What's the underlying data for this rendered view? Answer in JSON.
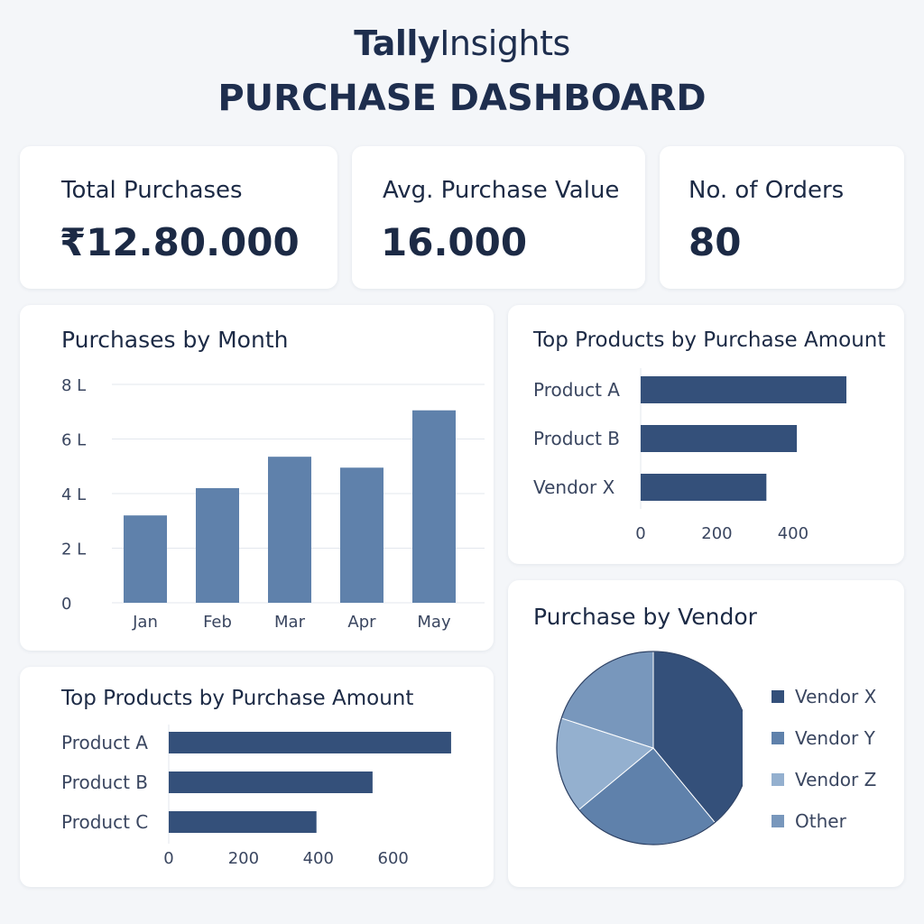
{
  "header": {
    "brand_bold": "Tally",
    "brand_regular": "Insights",
    "title": "PURCHASE DASHBOARD"
  },
  "kpis": [
    {
      "label": "Total Purchases",
      "value": "₹12.80.000"
    },
    {
      "label": "Avg. Purchase Value",
      "value": "16.000"
    },
    {
      "label": "No. of Orders",
      "value": "80"
    }
  ],
  "colors": {
    "bar_month": "#5f81ab",
    "bar_dark": "#34507a",
    "pie": [
      "#34507a",
      "#5f81ab",
      "#94b0cf",
      "#7897bc"
    ],
    "grid": "#e3e7ee",
    "axis_text": "#3a4660"
  },
  "chart_data": [
    {
      "type": "bar",
      "title": "Purchases by Month",
      "categories": [
        "Jan",
        "Feb",
        "Mar",
        "Apr",
        "May"
      ],
      "values": [
        3.2,
        4.2,
        5.35,
        4.95,
        7.05
      ],
      "ylim": [
        0,
        8
      ],
      "yticks": [
        0,
        2,
        4,
        6,
        8
      ],
      "ytick_labels": [
        "0",
        "2 L",
        "4 L",
        "6 L",
        "8 L"
      ],
      "grid": true
    },
    {
      "type": "bar",
      "orientation": "horizontal",
      "title": "Top Products by Purchase Amount",
      "categories": [
        "Product A",
        "Product B",
        "Vendor X"
      ],
      "values": [
        540,
        410,
        330
      ],
      "xlim": [
        0,
        540
      ],
      "xticks": [
        0,
        200,
        400
      ]
    },
    {
      "type": "pie",
      "title": "Purchase by Vendor",
      "categories": [
        "Vendor X",
        "Vendor Y",
        "Vendor Z",
        "Other"
      ],
      "values": [
        39,
        25,
        16,
        20
      ]
    },
    {
      "type": "bar",
      "orientation": "horizontal",
      "title": "Top Products by Purchase Amount",
      "categories": [
        "Product A",
        "Product B",
        "Product C"
      ],
      "values": [
        755,
        545,
        395
      ],
      "xlim": [
        0,
        760
      ],
      "xticks": [
        0,
        200,
        400,
        600
      ]
    }
  ]
}
